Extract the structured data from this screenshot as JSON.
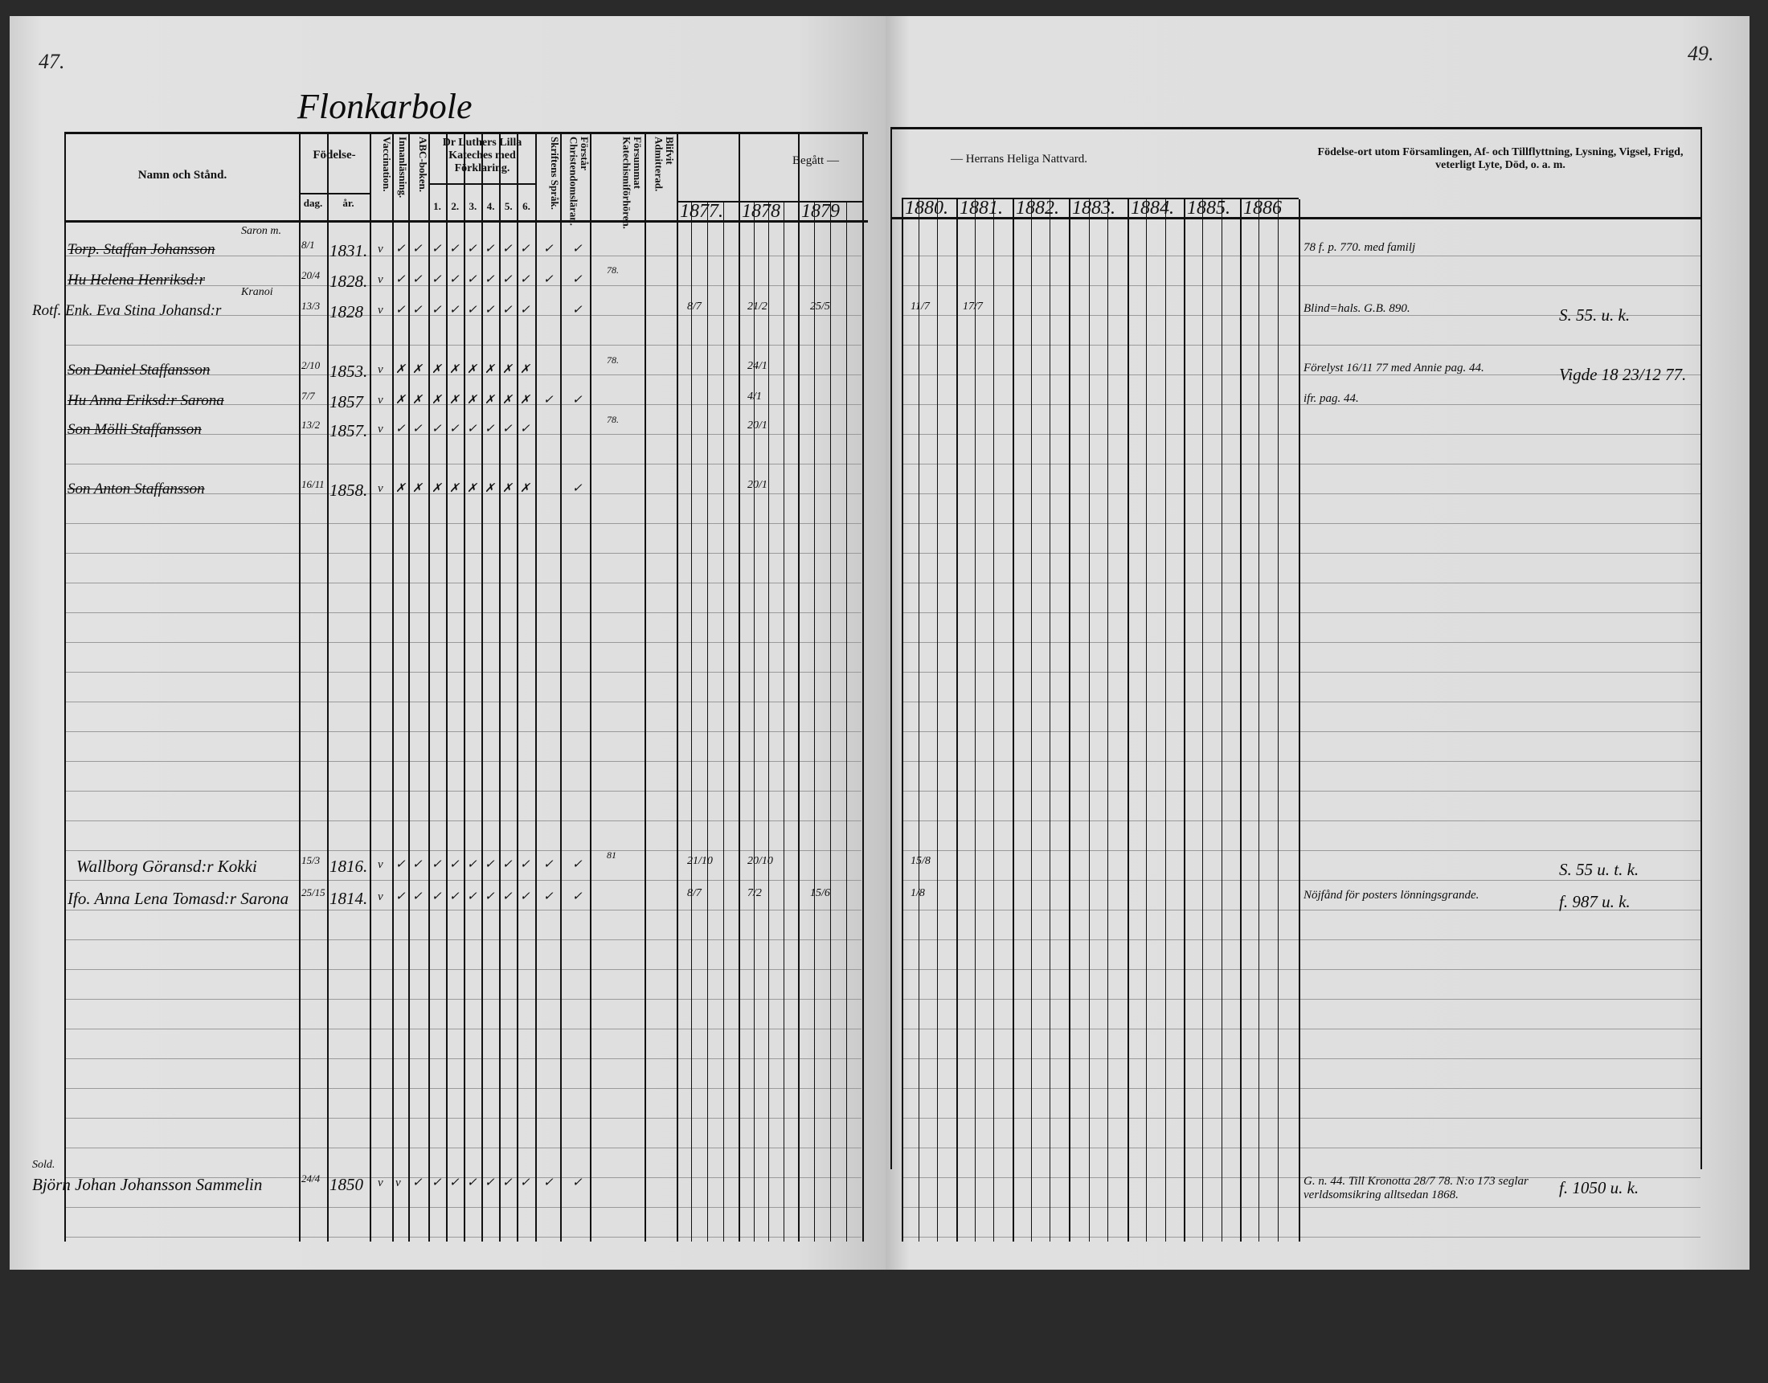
{
  "page_numbers": {
    "left": "47.",
    "right": "49."
  },
  "village_title": "Flonkarbole",
  "headers": {
    "name": "Namn och Stånd.",
    "birth": "Födelse-",
    "birth_day": "dag.",
    "birth_year": "år.",
    "vaccination": "Vaccination.",
    "reading": "Innanläsning.",
    "abc": "ABC-boken.",
    "catechism": "Dr Luthers Lilla Kateches med Förklaring.",
    "catechism_parts": [
      "1.",
      "2.",
      "3.",
      "4.",
      "5.",
      "6."
    ],
    "scripture": "Skriftens Språk.",
    "understands": "Förstår Christendomsläran.",
    "missed": "Försummat Katechismiförhören.",
    "admitted": "Blifvit Admitterad.",
    "communion_left": "Begått —",
    "communion_right": "— Herrans Heliga Nattvard.",
    "years": [
      "1877.",
      "1878",
      "1879",
      "1880.",
      "1881.",
      "1882.",
      "1883.",
      "1884.",
      "1885.",
      "1886"
    ],
    "notes": "Födelse-ort utom Församlingen, Af- och Tillflyttning, Lysning, Vigsel, Frigd, veterligt Lyte, Död, o. a. m."
  },
  "entries": [
    {
      "name": "Torp. Staffan Johansson",
      "above": "Saron m.",
      "struck": true,
      "day": "8/1",
      "year": "1831.",
      "marks": [
        "v",
        "✓",
        "✓",
        "✓",
        "✓",
        "✓",
        "✓",
        "✓",
        "✓",
        "✓",
        "✓"
      ],
      "missed": "",
      "communion": {},
      "notes": "78 f. p. 770. med familj",
      "notes_right": ""
    },
    {
      "name": "Hu Helena Henriksd:r",
      "above": "",
      "struck": true,
      "day": "20/4",
      "year": "1828.",
      "marks": [
        "v",
        "✓",
        "✓",
        "✓",
        "✓",
        "✓",
        "✓",
        "✓",
        "✓",
        "✓",
        "✓"
      ],
      "missed": "78.",
      "communion": {},
      "notes": "",
      "notes_right": ""
    },
    {
      "name": "Rotf. Enk. Eva Stina Johansd:r",
      "above": "Kranoi",
      "struck": false,
      "day": "13/3",
      "year": "1828",
      "marks": [
        "v",
        "✓",
        "✓",
        "✓",
        "✓",
        "✓",
        "✓",
        "✓",
        "✓",
        "",
        "✓"
      ],
      "missed": "",
      "communion": {
        "1877.": "8/7",
        "1878": "21/2",
        "1879": "25/5",
        "1880.": "11/7",
        "1881.": "17/7"
      },
      "notes": "Blind=hals. G.B. 890.",
      "notes_right": "S. 55. u. k."
    },
    {
      "name": "Son Daniel Staffansson",
      "above": "",
      "struck": true,
      "day": "2/10",
      "year": "1853.",
      "marks": [
        "v",
        "✗",
        "✗",
        "✗",
        "✗",
        "✗",
        "✗",
        "✗",
        "✗",
        "",
        ""
      ],
      "missed": "78.",
      "communion": {
        "1878": "24/1"
      },
      "notes": "Förelyst 16/11 77 med Annie pag. 44.",
      "notes_right": "Vigde 18 23/12 77."
    },
    {
      "name": "Hu Anna Eriksd:r Sarona",
      "above": "",
      "struck": true,
      "day": "7/7",
      "year": "1857",
      "marks": [
        "v",
        "✗",
        "✗",
        "✗",
        "✗",
        "✗",
        "✗",
        "✗",
        "✗",
        "✓",
        "✓"
      ],
      "missed": "",
      "communion": {
        "1878": "4/1"
      },
      "notes": "ifr. pag. 44.",
      "notes_right": ""
    },
    {
      "name": "Son Mölli Staffansson",
      "above": "",
      "struck": true,
      "day": "13/2",
      "year": "1857.",
      "marks": [
        "v",
        "✓",
        "✓",
        "✓",
        "✓",
        "✓",
        "✓",
        "✓",
        "✓",
        "",
        ""
      ],
      "missed": "78.",
      "communion": {
        "1878": "20/1"
      },
      "notes": "",
      "notes_right": ""
    },
    {
      "name": "Son Anton Staffansson",
      "above": "",
      "struck": true,
      "day": "16/11",
      "year": "1858.",
      "marks": [
        "v",
        "✗",
        "✗",
        "✗",
        "✗",
        "✗",
        "✗",
        "✗",
        "✗",
        "",
        "✓"
      ],
      "missed": "",
      "communion": {
        "1878": "20/1"
      },
      "notes": "",
      "notes_right": ""
    },
    {
      "name": "Wallborg Göransd:r Kokki",
      "above": "",
      "struck": false,
      "day": "15/3",
      "year": "1816.",
      "marks": [
        "v",
        "✓",
        "✓",
        "✓",
        "✓",
        "✓",
        "✓",
        "✓",
        "✓",
        "✓",
        "✓"
      ],
      "missed": "81",
      "communion": {
        "1877.": "21/10",
        "1878": "20/10",
        "1880.": "15/8"
      },
      "notes": "",
      "notes_right": "S. 55 u. t. k."
    },
    {
      "name": "Ifo. Anna Lena Tomasd:r Sarona",
      "above": "",
      "struck": false,
      "day": "25/15",
      "year": "1814.",
      "marks": [
        "v",
        "✓",
        "✓",
        "✓",
        "✓",
        "✓",
        "✓",
        "✓",
        "✓",
        "✓",
        "✓"
      ],
      "missed": "",
      "communion": {
        "1877.": "8/7",
        "1878": "7/2",
        "1879": "15/6",
        "1880.": "1/8"
      },
      "notes": "Nöjfånd för posters lönningsgrande.",
      "notes_right": "f. 987 u. k."
    },
    {
      "name": "Björn Johan Johansson Sammelin",
      "above": "Sold.",
      "struck": false,
      "day": "24/4",
      "year": "1850",
      "marks": [
        "v",
        "v",
        "✓",
        "✓",
        "✓",
        "✓",
        "✓",
        "✓",
        "✓",
        "✓",
        "✓"
      ],
      "missed": "",
      "communion": {},
      "notes": "G. n. 44. Till Kronotta 28/7 78. N:o 173 seglar verldsomsikring alltsedan 1868.",
      "notes_right": "f. 1050 u. k."
    }
  ]
}
